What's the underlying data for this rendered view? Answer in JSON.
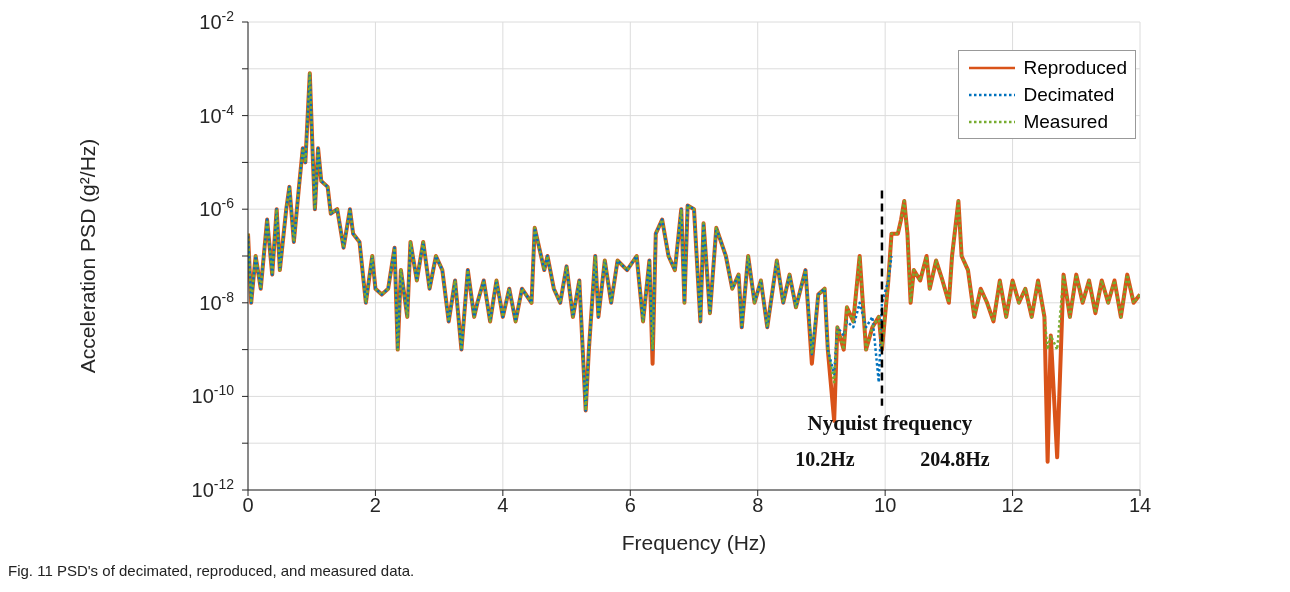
{
  "chart_data": {
    "type": "line",
    "xlabel": "Frequency (Hz)",
    "ylabel": "Acceleration PSD (g²/Hz)",
    "x": [
      0,
      0.05,
      0.12,
      0.2,
      0.3,
      0.38,
      0.45,
      0.5,
      0.6,
      0.65,
      0.72,
      0.8,
      0.86,
      0.9,
      0.97,
      1.02,
      1.05,
      1.1,
      1.15,
      1.25,
      1.3,
      1.4,
      1.5,
      1.6,
      1.65,
      1.75,
      1.85,
      1.95,
      2,
      2.1,
      2.2,
      2.3,
      2.35,
      2.4,
      2.5,
      2.55,
      2.65,
      2.75,
      2.85,
      2.95,
      3.05,
      3.15,
      3.25,
      3.35,
      3.45,
      3.55,
      3.6,
      3.7,
      3.8,
      3.9,
      4,
      4.1,
      4.2,
      4.3,
      4.45,
      4.5,
      4.55,
      4.65,
      4.7,
      4.8,
      4.9,
      5,
      5.1,
      5.2,
      5.3,
      5.35,
      5.45,
      5.5,
      5.6,
      5.7,
      5.8,
      5.95,
      6.1,
      6.2,
      6.3,
      6.35,
      6.4,
      6.5,
      6.6,
      6.7,
      6.8,
      6.85,
      6.9,
      7,
      7.1,
      7.15,
      7.25,
      7.35,
      7.5,
      7.6,
      7.7,
      7.75,
      7.85,
      7.95,
      8.05,
      8.15,
      8.3,
      8.4,
      8.5,
      8.6,
      8.75,
      8.85,
      8.95,
      9.05,
      9.1,
      9.2,
      9.25,
      9.35,
      9.4,
      9.5,
      9.6,
      9.7,
      9.8,
      9.9,
      9.95,
      10.05,
      10.1,
      10.2,
      10.25,
      10.3,
      10.35,
      10.4,
      10.45,
      10.55,
      10.65,
      10.7,
      10.8,
      10.9,
      11,
      11.05,
      11.15,
      11.2,
      11.3,
      11.4,
      11.5,
      11.6,
      11.7,
      11.8,
      11.9,
      12,
      12.1,
      12.2,
      12.3,
      12.4,
      12.5,
      12.55,
      12.6,
      12.7,
      12.8,
      12.9,
      13,
      13.1,
      13.2,
      13.3,
      13.4,
      13.5,
      13.6,
      13.7,
      13.8,
      13.9,
      14
    ],
    "series": [
      {
        "name": "Reproduced",
        "color": "#d95319",
        "line_style": "solid",
        "values": [
          3e-07,
          1e-08,
          1e-07,
          2e-08,
          6e-07,
          4e-08,
          1e-06,
          5e-08,
          1e-06,
          3e-06,
          2e-07,
          3e-06,
          2e-05,
          1e-05,
          0.0008,
          1e-05,
          1e-06,
          2e-05,
          4e-06,
          3e-06,
          8e-07,
          1e-06,
          1.5e-07,
          1e-06,
          3e-07,
          2e-07,
          1e-08,
          1e-07,
          2e-08,
          1.5e-08,
          2e-08,
          1.5e-07,
          1e-09,
          5e-08,
          5e-09,
          2e-07,
          3e-08,
          2e-07,
          2e-08,
          1e-07,
          5e-08,
          4e-09,
          3e-08,
          1e-09,
          5e-08,
          5e-09,
          1e-08,
          3e-08,
          4e-09,
          3e-08,
          5e-09,
          2e-08,
          4e-09,
          2e-08,
          1e-08,
          4e-07,
          2e-07,
          5e-08,
          1e-07,
          2e-08,
          1e-08,
          6e-08,
          5e-09,
          3e-08,
          5e-11,
          1e-09,
          1e-07,
          5e-09,
          8e-08,
          1e-08,
          8e-08,
          5e-08,
          1e-07,
          4e-09,
          8e-08,
          5e-10,
          3e-07,
          6e-07,
          1e-07,
          5e-08,
          1e-06,
          1e-08,
          1.2e-06,
          1e-06,
          4e-09,
          5e-07,
          6e-09,
          4e-07,
          1e-07,
          2e-08,
          4e-08,
          3e-09,
          1e-07,
          1e-08,
          3e-08,
          3e-09,
          8e-08,
          1e-08,
          4e-08,
          8e-09,
          5e-08,
          5e-10,
          1.5e-08,
          2e-08,
          1e-09,
          3e-11,
          3e-09,
          1e-09,
          8e-09,
          4e-09,
          1e-07,
          1e-09,
          3e-09,
          5e-09,
          1e-09,
          3e-08,
          3e-07,
          3e-07,
          6e-07,
          1.5e-06,
          3e-07,
          1e-08,
          5e-08,
          3e-08,
          1e-07,
          2e-08,
          8e-08,
          3e-08,
          1e-08,
          1e-07,
          1.5e-06,
          1e-07,
          5e-08,
          5e-09,
          2e-08,
          1e-08,
          4e-09,
          3e-08,
          5e-09,
          3e-08,
          1e-08,
          2e-08,
          5e-09,
          3e-08,
          5e-09,
          4e-12,
          2e-09,
          5e-12,
          4e-08,
          5e-09,
          4e-08,
          1e-08,
          3e-08,
          6e-09,
          3e-08,
          1e-08,
          3e-08,
          5e-09,
          4e-08,
          1e-08,
          1.5e-08
        ]
      },
      {
        "name": "Decimated",
        "color": "#0072bd",
        "line_style": "dotted",
        "values": [
          3e-07,
          1e-08,
          1e-07,
          2e-08,
          6e-07,
          4e-08,
          1e-06,
          5e-08,
          1e-06,
          3e-06,
          2e-07,
          3e-06,
          2e-05,
          1e-05,
          0.0008,
          1e-05,
          1e-06,
          2e-05,
          4e-06,
          3e-06,
          8e-07,
          1e-06,
          1.5e-07,
          1e-06,
          3e-07,
          2e-07,
          1e-08,
          1e-07,
          2e-08,
          1.5e-08,
          2e-08,
          1.5e-07,
          1e-09,
          5e-08,
          5e-09,
          2e-07,
          3e-08,
          2e-07,
          2e-08,
          1e-07,
          5e-08,
          4e-09,
          3e-08,
          1e-09,
          5e-08,
          5e-09,
          1e-08,
          3e-08,
          4e-09,
          3e-08,
          5e-09,
          2e-08,
          4e-09,
          2e-08,
          1e-08,
          4e-07,
          2e-07,
          5e-08,
          1e-07,
          2e-08,
          1e-08,
          6e-08,
          5e-09,
          3e-08,
          5e-11,
          1e-09,
          1e-07,
          5e-09,
          8e-08,
          1e-08,
          8e-08,
          5e-08,
          1e-07,
          4e-09,
          8e-08,
          1e-09,
          3e-07,
          6e-07,
          1e-07,
          5e-08,
          1e-06,
          1e-08,
          1.2e-06,
          1e-06,
          4e-09,
          5e-07,
          6e-09,
          4e-07,
          1e-07,
          2e-08,
          4e-08,
          3e-09,
          1e-07,
          1e-08,
          3e-08,
          3e-09,
          8e-08,
          1e-08,
          4e-08,
          8e-09,
          5e-08,
          8e-10,
          1.5e-08,
          2e-08,
          1e-09,
          3e-10,
          3e-09,
          2e-09,
          4e-09,
          3e-09,
          1e-08,
          3e-09,
          5e-09,
          2e-10,
          1e-08,
          3e-08,
          1e-07,
          null,
          null,
          null,
          null,
          null,
          null,
          null,
          null,
          null,
          null,
          null,
          null,
          null,
          null,
          null,
          null,
          null,
          null,
          null,
          null,
          null,
          null,
          null,
          null,
          null,
          null,
          null,
          null,
          null,
          null,
          null,
          null,
          null,
          null,
          null,
          null,
          null,
          null,
          null,
          null,
          null,
          null,
          null,
          null
        ]
      },
      {
        "name": "Measured",
        "color": "#77ac30",
        "line_style": "dotted",
        "values": [
          3e-07,
          1e-08,
          1e-07,
          2e-08,
          6e-07,
          4e-08,
          1e-06,
          5e-08,
          1e-06,
          3e-06,
          2e-07,
          3e-06,
          2e-05,
          1e-05,
          0.0008,
          1e-05,
          1e-06,
          2e-05,
          4e-06,
          3e-06,
          8e-07,
          1e-06,
          1.5e-07,
          1e-06,
          3e-07,
          2e-07,
          1e-08,
          1e-07,
          2e-08,
          1.5e-08,
          2e-08,
          1.5e-07,
          1e-09,
          5e-08,
          5e-09,
          2e-07,
          3e-08,
          2e-07,
          2e-08,
          1e-07,
          5e-08,
          4e-09,
          3e-08,
          1e-09,
          5e-08,
          5e-09,
          1e-08,
          3e-08,
          4e-09,
          3e-08,
          5e-09,
          2e-08,
          4e-09,
          2e-08,
          1e-08,
          4e-07,
          2e-07,
          5e-08,
          1e-07,
          2e-08,
          1e-08,
          6e-08,
          5e-09,
          3e-08,
          5e-11,
          1e-09,
          1e-07,
          5e-09,
          8e-08,
          1e-08,
          8e-08,
          5e-08,
          1e-07,
          4e-09,
          8e-08,
          1e-09,
          3e-07,
          6e-07,
          1e-07,
          5e-08,
          1e-06,
          1e-08,
          1.2e-06,
          1e-06,
          4e-09,
          5e-07,
          6e-09,
          4e-07,
          1e-07,
          2e-08,
          4e-08,
          3e-09,
          1e-07,
          1e-08,
          3e-08,
          3e-09,
          8e-08,
          1e-08,
          4e-08,
          8e-09,
          5e-08,
          8e-10,
          1.5e-08,
          2e-08,
          1e-09,
          2e-10,
          3e-09,
          1e-09,
          8e-09,
          4e-09,
          1e-07,
          1e-09,
          3e-09,
          5e-09,
          1e-09,
          3e-08,
          3e-07,
          3e-07,
          6e-07,
          1.5e-06,
          3e-07,
          1e-08,
          5e-08,
          3e-08,
          1e-07,
          2e-08,
          8e-08,
          3e-08,
          1e-08,
          1e-07,
          1.5e-06,
          1e-07,
          5e-08,
          5e-09,
          2e-08,
          1e-08,
          4e-09,
          3e-08,
          5e-09,
          3e-08,
          1e-08,
          2e-08,
          5e-09,
          3e-08,
          5e-09,
          1e-09,
          2e-09,
          1e-09,
          4e-08,
          5e-09,
          4e-08,
          1e-08,
          3e-08,
          6e-09,
          3e-08,
          1e-08,
          3e-08,
          5e-09,
          4e-08,
          1e-08,
          1.5e-08
        ]
      }
    ],
    "xlim": [
      0,
      14
    ],
    "xticks": [
      0,
      2,
      4,
      6,
      8,
      10,
      12,
      14
    ],
    "ylim": [
      1e-12,
      0.01
    ],
    "yticks": [
      {
        "value": 1e-12,
        "label": "10$^{-12}$"
      },
      {
        "value": 1e-11,
        "label": null
      },
      {
        "value": 1e-10,
        "label": "10$^{-10}$"
      },
      {
        "value": 1e-09,
        "label": null
      },
      {
        "value": 1e-08,
        "label": "10$^{-8}$"
      },
      {
        "value": 1e-07,
        "label": null
      },
      {
        "value": 1e-06,
        "label": "10$^{-6}$"
      },
      {
        "value": 1e-05,
        "label": null
      },
      {
        "value": 0.0001,
        "label": "10$^{-4}$"
      },
      {
        "value": 0.001,
        "label": null
      },
      {
        "value": 0.01,
        "label": "10$^{-2}$"
      }
    ],
    "log": "y",
    "grid": true,
    "legend": "top right",
    "marker": "none",
    "ref_lines": [
      {
        "axis": "x",
        "value": 9.95,
        "label": "Nyquist frequency",
        "color": "#000000",
        "line_style": "dashed"
      }
    ],
    "annotations": [
      "10.2Hz",
      "204.8Hz",
      "Fig. 11 PSD's of decimated, reproduced, and measured data."
    ]
  }
}
